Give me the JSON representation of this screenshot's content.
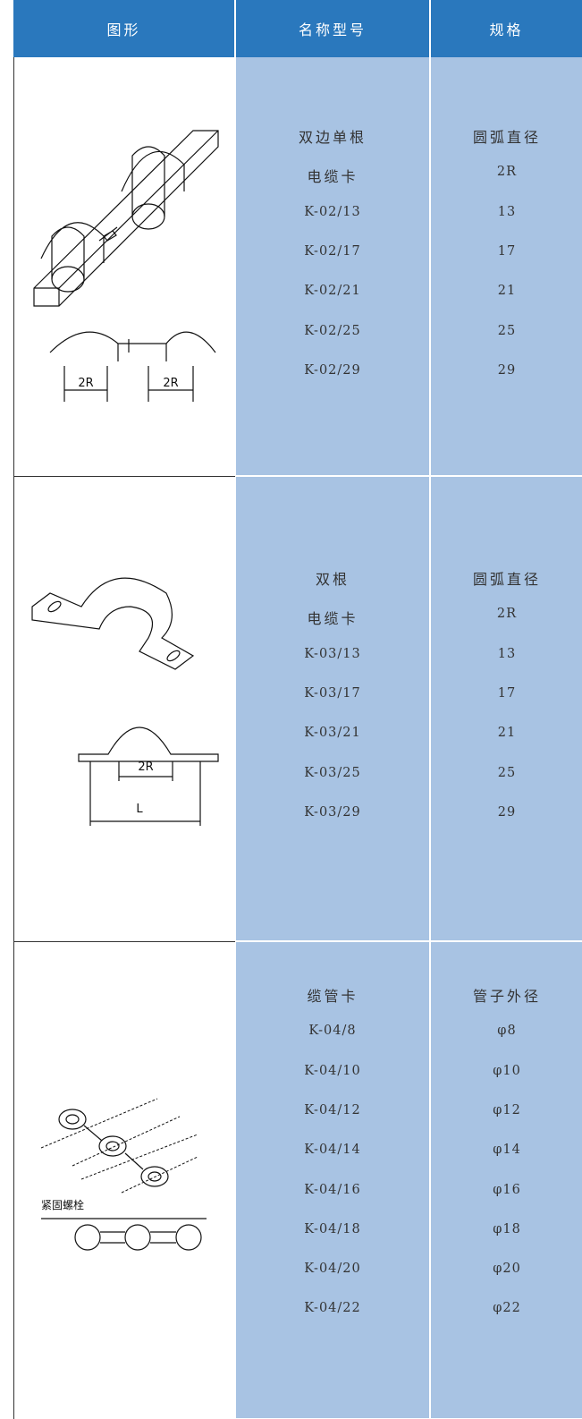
{
  "header": [
    "图形",
    "名称型号",
    "规格"
  ],
  "rows": [
    {
      "figure_labels": [
        "2R",
        "2R"
      ],
      "names": [
        "双边单根",
        "电缆卡",
        "K-02/13",
        "K-02/17",
        "K-02/21",
        "K-02/25",
        "K-02/29"
      ],
      "specs": [
        "圆弧直径",
        "2R",
        "13",
        "17",
        "21",
        "25",
        "29"
      ]
    },
    {
      "figure_labels": [
        "2R",
        "L"
      ],
      "names": [
        "双根",
        "电缆卡",
        "K-03/13",
        "K-03/17",
        "K-03/21",
        "K-03/25",
        "K-03/29"
      ],
      "specs": [
        "圆弧直径",
        "2R",
        "13",
        "17",
        "21",
        "25",
        "29"
      ]
    },
    {
      "figure_labels": [
        "紧固螺栓"
      ],
      "names": [
        "缆管卡",
        "K-04/8",
        "K-04/10",
        "K-04/12",
        "K-04/14",
        "K-04/16",
        "K-04/18",
        "K-04/20",
        "K-04/22"
      ],
      "specs": [
        "管子外径",
        "φ8",
        "φ10",
        "φ12",
        "φ14",
        "φ16",
        "φ18",
        "φ20",
        "φ22"
      ]
    }
  ]
}
